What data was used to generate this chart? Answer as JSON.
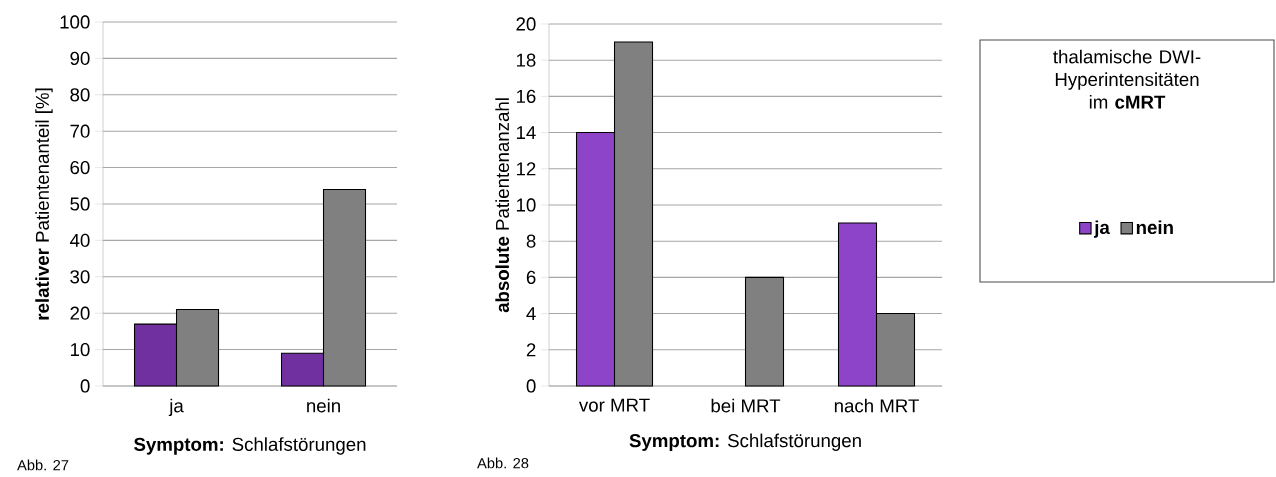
{
  "chart_data": [
    {
      "type": "bar",
      "categories": [
        "ja",
        "nein"
      ],
      "series": [
        {
          "color": "#7030a0",
          "values": [
            17,
            9
          ]
        },
        {
          "color": "#808080",
          "values": [
            21,
            54
          ]
        }
      ],
      "ylim": [
        0,
        100
      ],
      "yticks": [
        0,
        10,
        20,
        30,
        40,
        50,
        60,
        70,
        80,
        90,
        100
      ],
      "grid": "y",
      "xlabel": "**Symptom:** Schlafstörungen",
      "ylabel": "**relativer** Patientenanteil [%]",
      "annotations": [
        "Abb. 27"
      ]
    },
    {
      "type": "bar",
      "categories": [
        "vor MRT",
        "bei MRT",
        "nach MRT"
      ],
      "series": [
        {
          "name": "ja",
          "color": "#8e44c8",
          "values": [
            14,
            null,
            9
          ]
        },
        {
          "name": "nein",
          "color": "#808080",
          "values": [
            19,
            6,
            4
          ]
        }
      ],
      "ylim": [
        0,
        20
      ],
      "yticks": [
        0,
        2,
        4,
        6,
        8,
        10,
        12,
        14,
        16,
        18,
        20
      ],
      "grid": "y",
      "xlabel": "**Symptom:** Schlafstörungen",
      "ylabel": "**absolute** Patientenanzahl",
      "annotations": [
        "Abb. 28"
      ],
      "legend": "right",
      "legend_title": "thalamische DWI-Hyperintensitäten im **cMRT**"
    }
  ]
}
